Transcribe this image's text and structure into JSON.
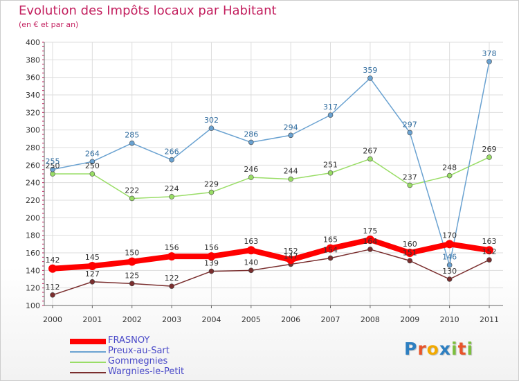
{
  "header": {
    "title": "Evolution des Impôts locaux par Habitant",
    "subtitle": "(en € et par an)"
  },
  "colors": {
    "title": "#c3205f",
    "grid": "#dddddd",
    "axis": "#666666",
    "axis_ticks": "#c3205f"
  },
  "brand": {
    "letters": [
      "P",
      "r",
      "o",
      "x",
      "i",
      "t",
      "i"
    ],
    "colors": [
      "#2d7fc1",
      "#e8542a",
      "#f2a900",
      "#2d7fc1",
      "#7cbf3d",
      "#e8542a",
      "#7cbf3d"
    ]
  },
  "chart_data": {
    "type": "line",
    "title": "Evolution des Impôts locaux par Habitant",
    "subtitle": "(en € et par an)",
    "xlabel": "",
    "ylabel": "",
    "x": [
      "2000",
      "2001",
      "2002",
      "2003",
      "2004",
      "2005",
      "2006",
      "2007",
      "2008",
      "2009",
      "2010",
      "2011"
    ],
    "ylim": [
      100,
      400
    ],
    "yticks": [
      100,
      120,
      140,
      160,
      180,
      200,
      220,
      240,
      260,
      280,
      300,
      320,
      340,
      360,
      380,
      400
    ],
    "grid": true,
    "legend_position": "bottom-left",
    "series": [
      {
        "name": "FRASNOY",
        "color": "#ff0000",
        "label_color": "#333333",
        "thick": true,
        "values": [
          142,
          145,
          150,
          156,
          156,
          163,
          152,
          165,
          175,
          160,
          170,
          163
        ],
        "labels": [
          "142",
          "145",
          "150",
          "156",
          "156",
          "163",
          "152",
          "165",
          "175",
          "160",
          "170",
          "163"
        ]
      },
      {
        "name": "Preux-au-Sart",
        "color": "#6aa2d1",
        "label_color": "#2e6b9e",
        "thick": false,
        "values": [
          255,
          264,
          285,
          266,
          302,
          286,
          294,
          317,
          359,
          297,
          146,
          378
        ],
        "labels": [
          "255",
          "264",
          "285",
          "266",
          "302",
          "286",
          "294",
          "317",
          "359",
          "297",
          "146",
          "378"
        ]
      },
      {
        "name": "Gommegnies",
        "color": "#99dd66",
        "label_color": "#333333",
        "thick": false,
        "values": [
          250,
          250,
          222,
          224,
          229,
          246,
          244,
          251,
          267,
          237,
          248,
          269
        ],
        "labels": [
          "250",
          "250",
          "222",
          "224",
          "229",
          "246",
          "244",
          "251",
          "267",
          "237",
          "248",
          "269"
        ]
      },
      {
        "name": "Wargnies-le-Petit",
        "color": "#7a2e2e",
        "label_color": "#333333",
        "thick": false,
        "values": [
          112,
          127,
          125,
          122,
          139,
          140,
          147,
          154,
          164,
          151,
          130,
          152
        ],
        "labels": [
          "112",
          "127",
          "125",
          "122",
          "139",
          "140",
          "147",
          "154",
          "164",
          "151",
          "130",
          "152"
        ]
      }
    ]
  }
}
